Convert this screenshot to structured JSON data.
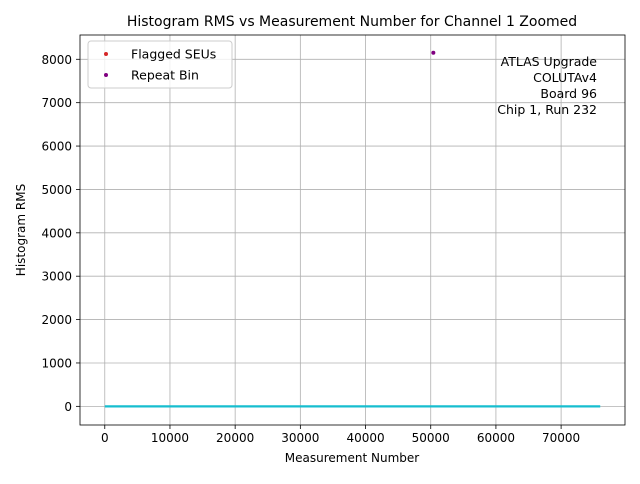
{
  "chart_data": {
    "type": "scatter",
    "title": "Histogram RMS vs Measurement Number for Channel 1 Zoomed",
    "xlabel": "Measurement Number",
    "ylabel": "Histogram RMS",
    "xlim": [
      -3800,
      79800
    ],
    "ylim": [
      -430,
      8560
    ],
    "xticks": [
      0,
      10000,
      20000,
      30000,
      40000,
      50000,
      60000,
      70000
    ],
    "yticks": [
      0,
      1000,
      2000,
      3000,
      4000,
      5000,
      6000,
      7000,
      8000
    ],
    "grid": true,
    "legend_position": "top-left",
    "annotation": [
      "ATLAS Upgrade",
      "COLUTAv4",
      "Board 96",
      "Chip 1, Run 232"
    ],
    "series": [
      {
        "kind": "line",
        "color": "#17becf",
        "x": [
          0,
          76000
        ],
        "y": [
          0,
          0
        ]
      },
      {
        "kind": "scatter",
        "name": "Flagged SEUs",
        "color": "#d62728",
        "x": [],
        "y": []
      },
      {
        "kind": "scatter",
        "name": "Repeat Bin",
        "color": "#800080",
        "x": [
          50400
        ],
        "y": [
          8150
        ]
      }
    ],
    "legend": [
      {
        "label": "Flagged SEUs",
        "color": "#d62728"
      },
      {
        "label": "Repeat Bin",
        "color": "#800080"
      }
    ]
  }
}
